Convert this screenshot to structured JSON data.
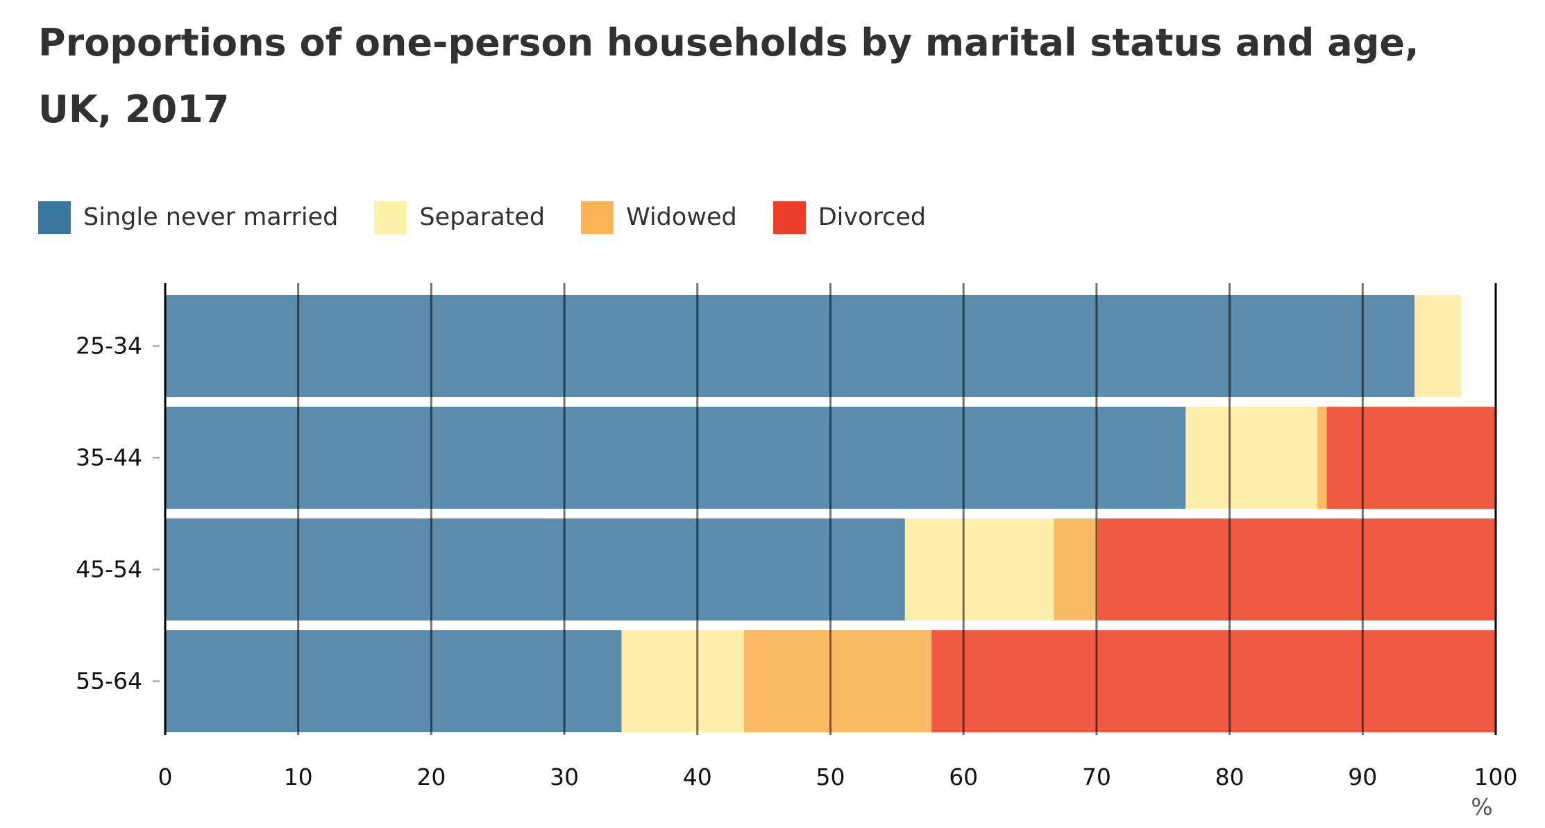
{
  "chart_data": {
    "type": "bar",
    "orientation": "horizontal",
    "stacked": true,
    "title": "Proportions of one-person households by marital status and age, UK, 2017",
    "categories": [
      "25-34",
      "35-44",
      "45-54",
      "55-64"
    ],
    "series": [
      {
        "name": "Single never married",
        "color": "#5A8DAD",
        "legend_color": "#3A779F",
        "values": [
          93.9,
          76.7,
          55.6,
          34.3
        ]
      },
      {
        "name": "Separated",
        "color": "#FFEEAC",
        "legend_color": "#FFF0A8",
        "values": [
          3.5,
          9.9,
          11.2,
          9.2
        ]
      },
      {
        "name": "Widowed",
        "color": "#FDBA64",
        "legend_color": "#FDB456",
        "values": [
          0.0,
          0.7,
          3.3,
          14.1
        ]
      },
      {
        "name": "Divorced",
        "color": "#F05A42",
        "legend_color": "#EF3E2A",
        "values": [
          0.0,
          12.7,
          29.9,
          42.4
        ]
      }
    ],
    "xlim": [
      0,
      100
    ],
    "xticks": [
      0,
      10,
      20,
      30,
      40,
      50,
      60,
      70,
      80,
      90,
      100
    ],
    "xunit": "%",
    "grid": true,
    "legend_position": "top-left"
  }
}
